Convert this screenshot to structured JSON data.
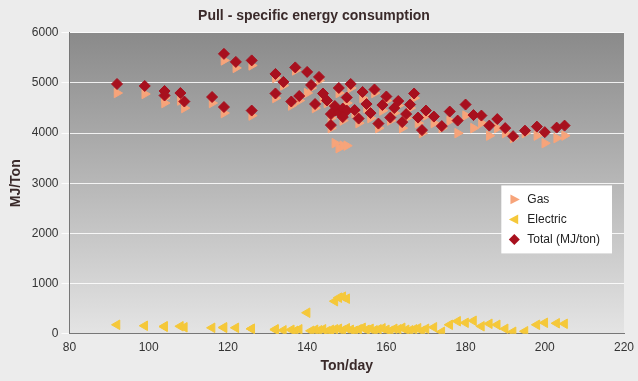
{
  "chart_data": {
    "type": "scatter",
    "title": "Pull - specific energy consumption",
    "x_label": "Ton/day",
    "y_label": "MJ/Ton",
    "x": [
      92,
      99,
      104,
      104,
      108,
      109,
      116,
      119,
      119,
      122,
      126,
      126,
      132,
      132,
      134,
      136,
      137,
      138,
      140,
      141,
      142,
      143,
      144,
      145,
      146,
      146,
      147,
      148,
      149,
      150,
      147,
      148,
      149,
      150,
      151,
      152,
      153,
      154,
      155,
      156,
      157,
      158,
      159,
      160,
      161,
      162,
      163,
      164,
      165,
      166,
      167,
      168,
      169,
      170,
      172,
      174,
      176,
      178,
      180,
      182,
      184,
      186,
      188,
      190,
      192,
      195,
      198,
      200,
      203,
      205
    ],
    "series": [
      {
        "name": "Gas",
        "color": "#f7a47a",
        "marker": "triangle-right",
        "values": [
          4800,
          4780,
          4600,
          4700,
          4650,
          4500,
          4600,
          4400,
          5450,
          5300,
          5350,
          4350,
          5100,
          4700,
          4950,
          4550,
          5250,
          4650,
          4800,
          4900,
          4500,
          5050,
          4700,
          4600,
          4300,
          4100,
          3800,
          3700,
          3750,
          3750,
          4450,
          4800,
          4250,
          4600,
          4900,
          4400,
          4200,
          4700,
          4500,
          4300,
          4800,
          4100,
          4450,
          4650,
          4250,
          4400,
          4550,
          4100,
          4300,
          4500,
          4700,
          4200,
          4000,
          4350,
          4200,
          4100,
          4250,
          4000,
          4350,
          4100,
          4200,
          3950,
          4100,
          4000,
          3900,
          4000,
          3950,
          3800,
          3900,
          3950
        ]
      },
      {
        "name": "Electric",
        "color": "#f5c83a",
        "marker": "triangle-left",
        "values": [
          180,
          160,
          150,
          140,
          150,
          130,
          120,
          120,
          130,
          120,
          100,
          100,
          80,
          90,
          70,
          80,
          60,
          90,
          420,
          60,
          80,
          70,
          90,
          50,
          80,
          60,
          650,
          720,
          740,
          700,
          90,
          100,
          70,
          110,
          80,
          60,
          90,
          120,
          80,
          100,
          70,
          90,
          110,
          80,
          60,
          100,
          90,
          120,
          80,
          70,
          90,
          110,
          60,
          100,
          130,
          40,
          180,
          250,
          220,
          260,
          150,
          200,
          180,
          100,
          40,
          50,
          180,
          220,
          210,
          200
        ]
      },
      {
        "name": "Total (MJ/ton)",
        "color": "#a8101e",
        "marker": "diamond",
        "values": [
          4980,
          4940,
          4750,
          4840,
          4800,
          4630,
          4720,
          4520,
          5580,
          5420,
          5450,
          4450,
          5180,
          4790,
          5020,
          4630,
          5310,
          4740,
          5220,
          4960,
          4580,
          5120,
          4790,
          4650,
          4380,
          4160,
          4450,
          4420,
          4490,
          4450,
          4540,
          4900,
          4320,
          4710,
          4980,
          4460,
          4290,
          4820,
          4580,
          4400,
          4870,
          4190,
          4560,
          4730,
          4310,
          4500,
          4640,
          4220,
          4380,
          4570,
          4790,
          4310,
          4060,
          4450,
          4330,
          4140,
          4430,
          4250,
          4570,
          4360,
          4350,
          4150,
          4280,
          4100,
          3940,
          4050,
          4130,
          4020,
          4110,
          4150
        ]
      }
    ],
    "xlim": [
      80,
      220
    ],
    "xticks": [
      80,
      100,
      120,
      140,
      160,
      180,
      200,
      220
    ],
    "ylim": [
      0,
      6000
    ],
    "yticks": [
      0,
      1000,
      2000,
      3000,
      4000,
      5000,
      6000
    ],
    "grid": true,
    "legend": "right"
  }
}
